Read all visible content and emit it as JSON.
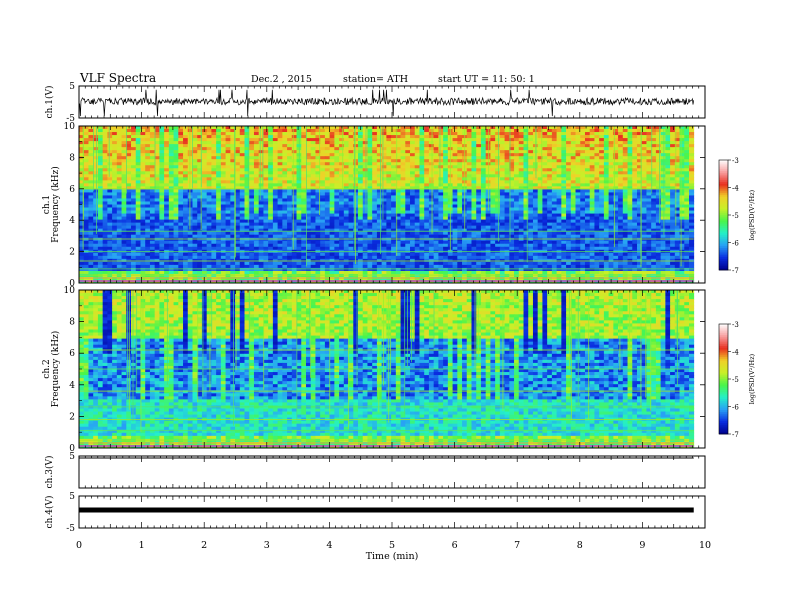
{
  "header": {
    "title": "VLF  Spectra",
    "date": "Dec.2  , 2015",
    "station": "station= ATH",
    "start": "start  UT  =    11: 50: 1"
  },
  "chart_data": [
    {
      "type": "line",
      "name": "ch1-waveform",
      "ylabel": "ch.1(V)",
      "yticks": [
        "5",
        "-5"
      ],
      "ylim": [
        -5,
        5
      ],
      "level": 0.2
    },
    {
      "type": "heatmap",
      "name": "ch1-spectrogram",
      "ylabel": "ch.1\nFrequency  (kHz)",
      "ylabel_line1": "ch.1",
      "ylabel_line2": "Frequency  (kHz)",
      "yticks": [
        "0",
        "2",
        "4",
        "6",
        "8",
        "10"
      ],
      "ylim": [
        0,
        10
      ],
      "colorbar": {
        "label": "log(PSD(V²/Hz)",
        "ticks": [
          "-3",
          "-4",
          "-5",
          "-6",
          "-7"
        ],
        "range": [
          -7,
          -3
        ]
      }
    },
    {
      "type": "heatmap",
      "name": "ch2-spectrogram",
      "ylabel": "ch.2\nFrequency  (kHz)",
      "ylabel_line1": "ch.2",
      "ylabel_line2": "Frequency  (kHz)",
      "yticks": [
        "0",
        "2",
        "4",
        "6",
        "8",
        "10"
      ],
      "ylim": [
        0,
        10
      ],
      "colorbar": {
        "label": "log(PSD(V²/Hz)",
        "ticks": [
          "-3",
          "-4",
          "-5",
          "-6",
          "-7"
        ],
        "range": [
          -7,
          -3
        ]
      }
    },
    {
      "type": "line",
      "name": "ch3-waveform",
      "ylabel": "ch.3(V)",
      "yticks": [
        "5"
      ],
      "ylim": [
        -5,
        5
      ],
      "level": 5
    },
    {
      "type": "line",
      "name": "ch4-waveform",
      "ylabel": "ch.4(V)",
      "yticks": [
        "5",
        "-5"
      ],
      "ylim": [
        -5,
        5
      ],
      "level": 0
    }
  ],
  "x_axis": {
    "label": "Time  (min)",
    "ticks": [
      "0",
      "1",
      "2",
      "3",
      "4",
      "5",
      "6",
      "7",
      "8",
      "9",
      "10"
    ],
    "xlim": [
      0,
      10
    ],
    "data_end": 9.82
  },
  "colors": {
    "axis": "#000000",
    "cmap": [
      "#00008b",
      "#0a2de0",
      "#28a0f5",
      "#24f0c8",
      "#4af54a",
      "#c8f028",
      "#f0d028",
      "#e83020",
      "#f8a0a0",
      "#ffffff"
    ]
  }
}
